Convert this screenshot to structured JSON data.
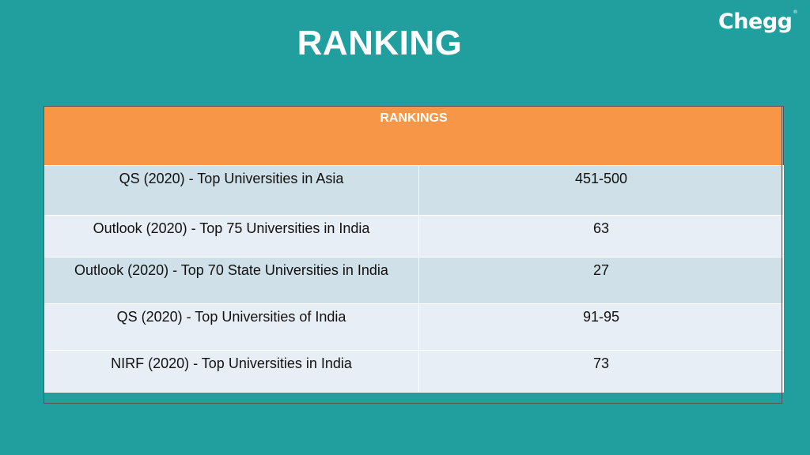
{
  "slide": {
    "title": "RANKING",
    "logo": "Chegg",
    "background_color": "#219e9e",
    "header_color": "#f79646"
  },
  "table": {
    "header": "RANKINGS",
    "rows": [
      {
        "ranking": "QS (2020) - Top Universities in Asia",
        "value": "451-500"
      },
      {
        "ranking": "Outlook (2020) - Top 75 Universities in India",
        "value": "63"
      },
      {
        "ranking": "Outlook (2020) - Top 70 State Universities in India",
        "value": "27"
      },
      {
        "ranking": "QS (2020) - Top Universities of India",
        "value": "91-95"
      },
      {
        "ranking": "NIRF (2020) - Top Universities in India",
        "value": "73"
      }
    ]
  }
}
